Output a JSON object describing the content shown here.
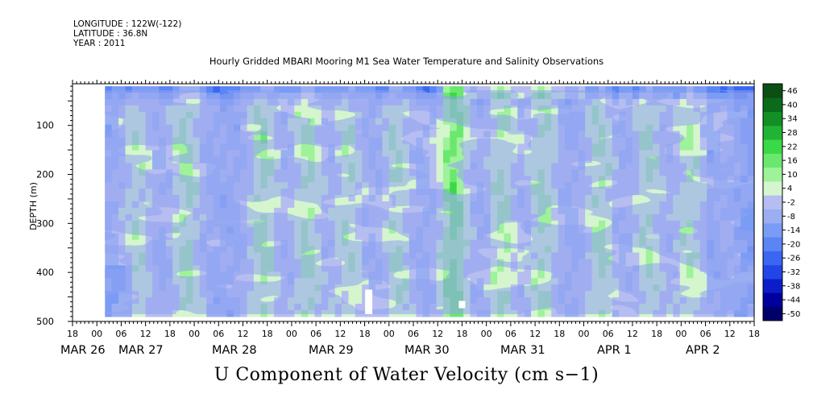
{
  "header": {
    "longitude": "LONGITUDE : 122W(-122)",
    "latitude": "LATITUDE : 36.8N",
    "year": "YEAR : 2011"
  },
  "chart_data": {
    "type": "heatmap",
    "title": "Hourly Gridded MBARI Mooring M1 Sea Water Temperature and Salinity Observations",
    "xlabel": "U Component of Water Velocity (cm s−1)",
    "ylabel": "DEPTH (m)",
    "y_reversed": true,
    "ylim": [
      500,
      15
    ],
    "data_depth_range": [
      20,
      490
    ],
    "y_ticks": [
      100,
      200,
      300,
      400,
      500
    ],
    "x_hour_ticks": [
      "18",
      "00",
      "06",
      "12",
      "18",
      "00",
      "06",
      "12",
      "18",
      "00",
      "06",
      "12",
      "18",
      "00",
      "06",
      "12",
      "18",
      "00",
      "06",
      "12",
      "18",
      "00",
      "06",
      "12",
      "18",
      "00",
      "06",
      "12",
      "18"
    ],
    "x_day_labels": [
      "MAR 26",
      "MAR 27",
      "MAR 28",
      "MAR 29",
      "MAR 30",
      "MAR 31",
      "APR  1",
      "APR  2"
    ],
    "x_range_hours": [
      -6,
      162
    ],
    "data_time_range_hours": [
      2,
      162
    ],
    "colorbar": {
      "levels": [
        -50,
        -44,
        -38,
        -32,
        -26,
        -20,
        -14,
        -8,
        -2,
        4,
        10,
        16,
        22,
        28,
        34,
        40,
        46
      ],
      "label_levels": [
        "46",
        "40",
        "34",
        "28",
        "22",
        "16",
        "10",
        "4",
        "-2",
        "-8",
        "-14",
        "-20",
        "-26",
        "-32",
        "-38",
        "-44",
        "-50"
      ],
      "colors": [
        "#00006a",
        "#00009c",
        "#0b1cc8",
        "#2345e6",
        "#3a66f2",
        "#5b84f4",
        "#7b9cf5",
        "#9aaef2",
        "#b6bdf0",
        "#d4f5ce",
        "#9ef29a",
        "#6ae86d",
        "#3bd847",
        "#21b434",
        "#128f25",
        "#0a6b1a",
        "#0b4f15"
      ]
    },
    "patches": [
      {
        "approx_time_hours": 67,
        "depth_range": [
          435,
          485
        ],
        "color": "#ffffff"
      },
      {
        "approx_time_hours": 90,
        "depth_range": [
          458,
          473
        ],
        "color": "#ffffff"
      }
    ],
    "grid": false,
    "legend": "colorbar-right"
  }
}
